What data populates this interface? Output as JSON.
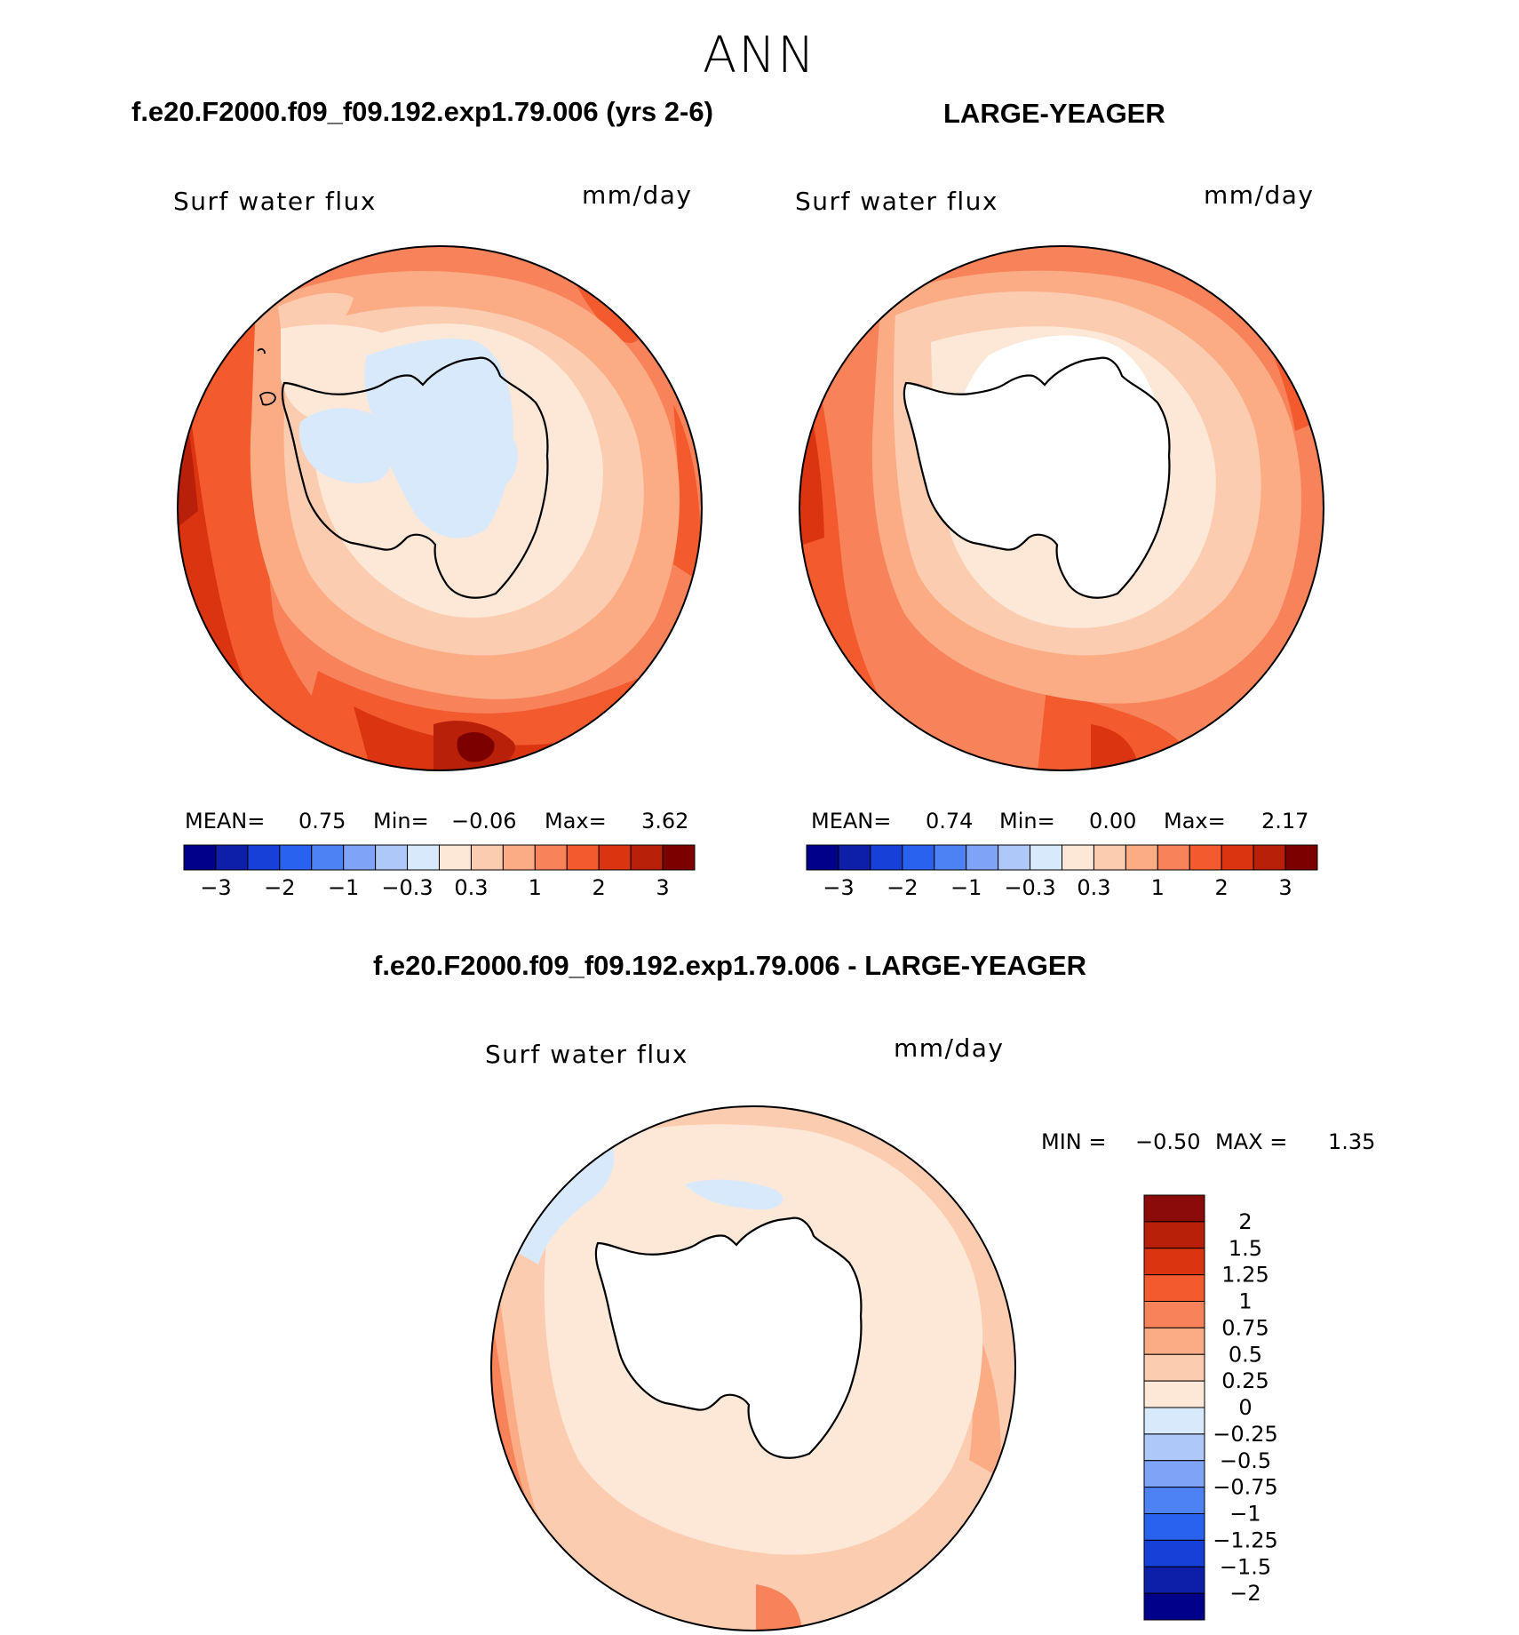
{
  "figure_title": "ANN",
  "panels": {
    "left": {
      "title": "f.e20.F2000.f09_f09.192.exp1.79.006 (yrs 2-6)",
      "variable": "Surf water flux",
      "units": "mm/day",
      "stats": {
        "mean_label": "MEAN=",
        "mean": "0.75",
        "min_label": "Min=",
        "min": "−0.06",
        "max_label": "Max=",
        "max": "3.62"
      }
    },
    "right": {
      "title": "LARGE-YEAGER",
      "variable": "Surf water flux",
      "units": "mm/day",
      "stats": {
        "mean_label": "MEAN=",
        "mean": "0.74",
        "min_label": "Min=",
        "min": "0.00",
        "max_label": "Max=",
        "max": "2.17"
      }
    },
    "diff": {
      "title": "f.e20.F2000.f09_f09.192.exp1.79.006 - LARGE-YEAGER",
      "variable": "Surf water flux",
      "units": "mm/day",
      "minmax": {
        "min_label": "MIN =",
        "min": "−0.50",
        "max_label": "MAX =",
        "max": "1.35"
      }
    }
  },
  "colorbar_top": {
    "colors": [
      "#00008b",
      "#0d1fa8",
      "#1640d8",
      "#2a62f0",
      "#4d82f5",
      "#7ea3f7",
      "#afc8fa",
      "#d9e9fc",
      "#fde8d8",
      "#fcccb0",
      "#fbac85",
      "#f8835a",
      "#f35a2d",
      "#da3510",
      "#b8200a",
      "#7d0000"
    ],
    "ticks": [
      "−3",
      "−2",
      "−1",
      "−0.3",
      "0.3",
      "1",
      "2",
      "3"
    ]
  },
  "colorbar_diff": {
    "colors_top_to_bottom": [
      "#8b0a0a",
      "#b8200a",
      "#da3510",
      "#f35a2d",
      "#f8835a",
      "#fbac85",
      "#fcccb0",
      "#fde8d8",
      "#d9e9fc",
      "#afc8fa",
      "#7ea3f7",
      "#4d82f5",
      "#2a62f0",
      "#1640d8",
      "#0d1fa8",
      "#00008b"
    ],
    "ticks": [
      "2",
      "1.5",
      "1.25",
      "1",
      "0.75",
      "0.5",
      "0.25",
      "0",
      "−0.25",
      "−0.5",
      "−0.75",
      "−1",
      "−1.25",
      "−1.5",
      "−2"
    ]
  }
}
